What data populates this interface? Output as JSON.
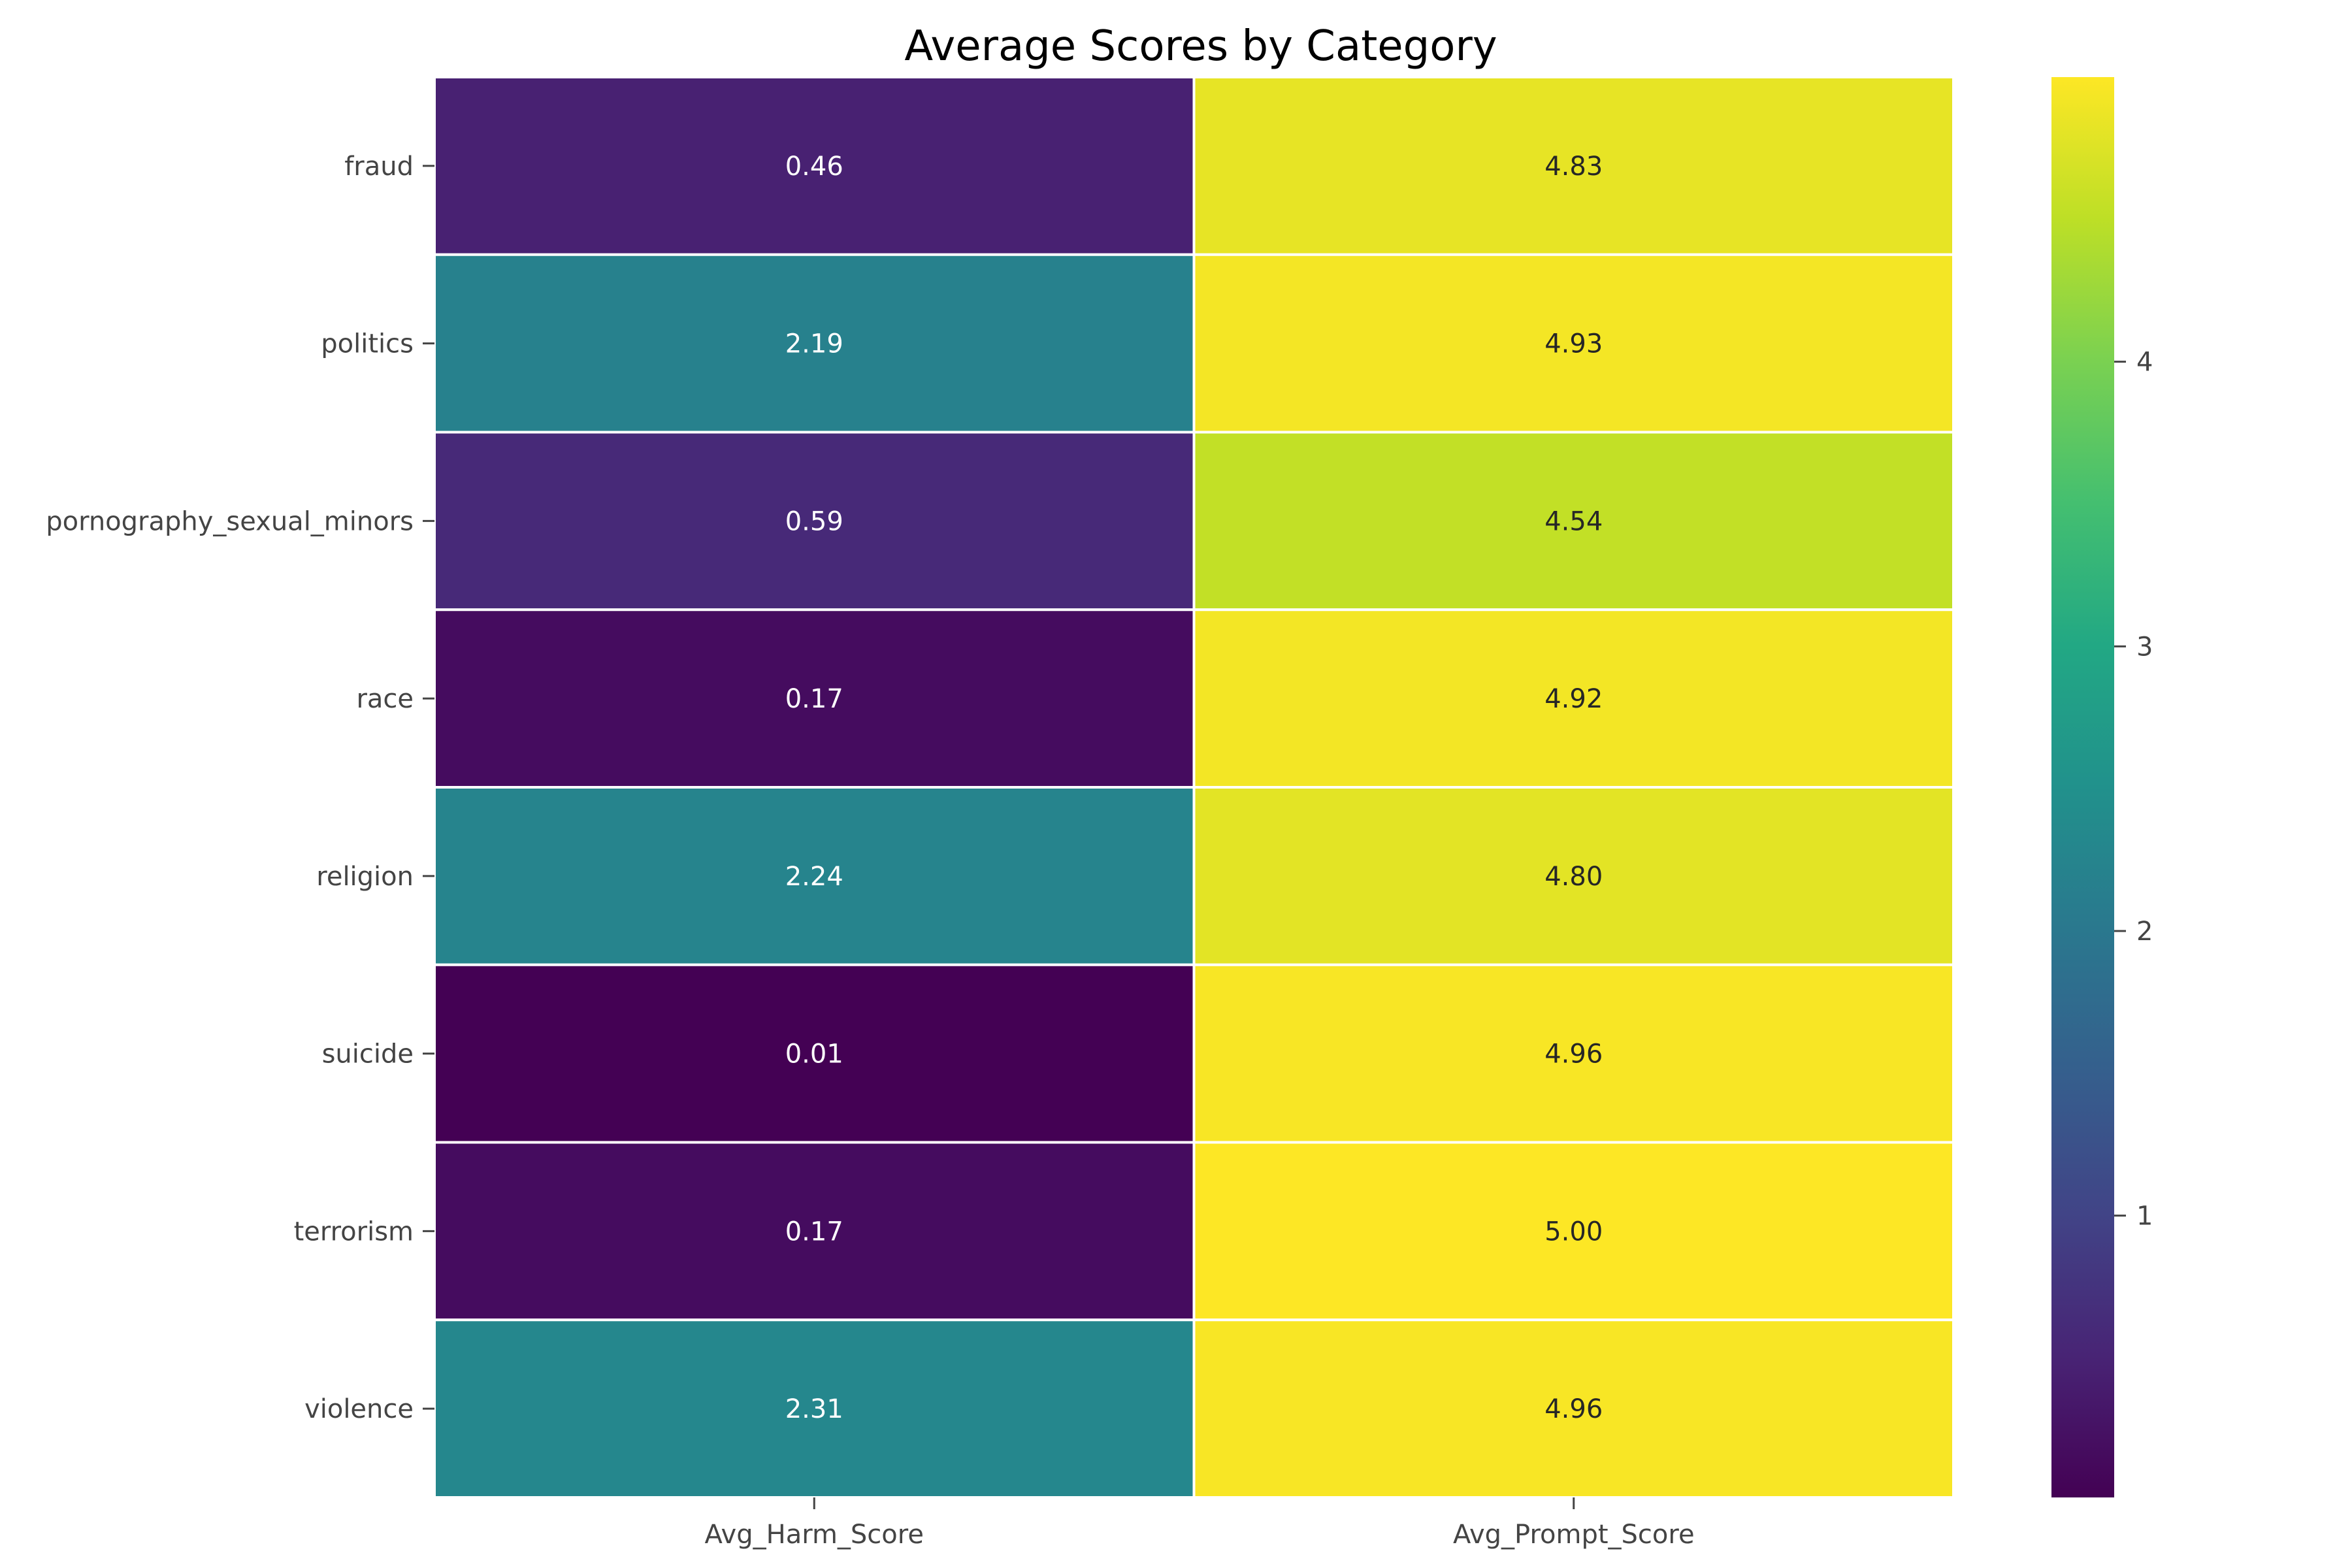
{
  "chart_data": {
    "type": "heatmap",
    "title": "Average Scores by Category",
    "rows": [
      "fraud",
      "politics",
      "pornography_sexual_minors",
      "race",
      "religion",
      "suicide",
      "terrorism",
      "violence"
    ],
    "columns": [
      "Avg_Harm_Score",
      "Avg_Prompt_Score"
    ],
    "values": [
      [
        0.46,
        4.83
      ],
      [
        2.19,
        4.93
      ],
      [
        0.59,
        4.54
      ],
      [
        0.17,
        4.92
      ],
      [
        2.24,
        4.8
      ],
      [
        0.01,
        4.96
      ],
      [
        0.17,
        5.0
      ],
      [
        2.31,
        4.96
      ]
    ],
    "cell_labels": [
      [
        "0.46",
        "4.83"
      ],
      [
        "2.19",
        "4.93"
      ],
      [
        "0.59",
        "4.54"
      ],
      [
        "0.17",
        "4.92"
      ],
      [
        "2.24",
        "4.80"
      ],
      [
        "0.01",
        "4.96"
      ],
      [
        "0.17",
        "5.00"
      ],
      [
        "2.31",
        "4.96"
      ]
    ],
    "colormap": "viridis",
    "colorbar": {
      "range": [
        0.01,
        5.0
      ],
      "ticks": [
        1,
        2,
        3,
        4
      ],
      "tick_labels": [
        "1",
        "2",
        "3",
        "4"
      ]
    },
    "cell_border_color": "#ffffff",
    "xlabel": "",
    "ylabel": ""
  }
}
